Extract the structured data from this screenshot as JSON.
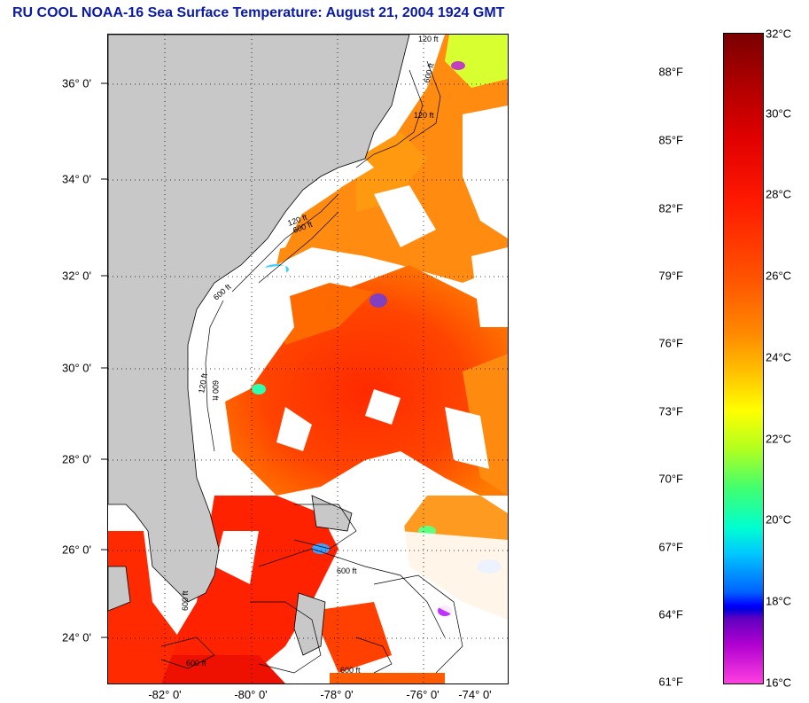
{
  "title": "RU COOL  NOAA-16  Sea Surface Temperature:  August 21, 2004 1924 GMT",
  "map": {
    "lat_labels": [
      "36° 0'",
      "34° 0'",
      "32° 0'",
      "30° 0'",
      "28° 0'",
      "26° 0'",
      "24° 0'"
    ],
    "lon_labels": [
      "-82° 0'",
      "-80° 0'",
      "-78° 0'",
      "-76° 0'",
      "-74° 0'"
    ],
    "contour_labels": [
      "120 ft",
      "600 ft",
      "120 ft",
      "600 ft",
      "120 ft",
      "600 ft",
      "120 ft",
      "600 ft",
      "600 ft",
      "600 ft",
      "600 ft",
      "600 ft"
    ],
    "land_color": "#c8c8c8",
    "cloud_color": "#ffffff"
  },
  "colorbar": {
    "fahrenheit_labels": [
      "88°F",
      "85°F",
      "82°F",
      "79°F",
      "76°F",
      "73°F",
      "70°F",
      "67°F",
      "64°F",
      "61°F"
    ],
    "celsius_labels": [
      "32°C",
      "30°C",
      "28°C",
      "26°C",
      "24°C",
      "22°C",
      "20°C",
      "18°C",
      "16°C"
    ]
  }
}
